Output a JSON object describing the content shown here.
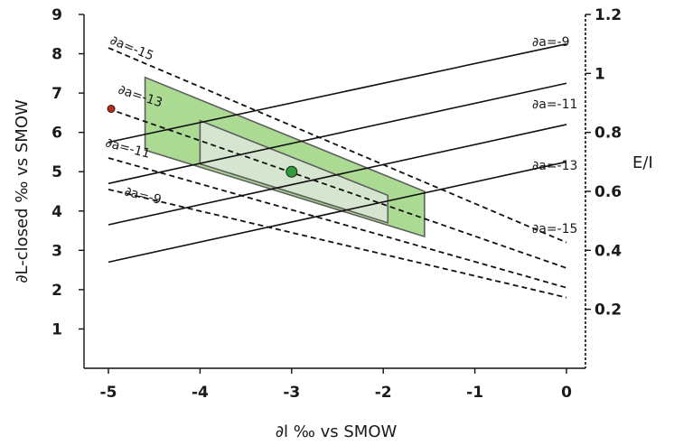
{
  "chart_data": {
    "type": "line",
    "xlabel_main": "∂l ‰ vs SMOW",
    "ylabel_main": "∂L-closed ‰ vs SMOW",
    "y2label": "E/I",
    "xlim": [
      -5.2,
      0.1
    ],
    "ylim": [
      0,
      9
    ],
    "y2lim": [
      0,
      1.2
    ],
    "x_ticks": [
      -5,
      -4,
      -3,
      -2,
      -1,
      0
    ],
    "x_tick_labels": [
      "-5",
      "-4",
      "-3",
      "-2",
      "-1",
      "0"
    ],
    "y_ticks": [
      1,
      2,
      3,
      4,
      5,
      6,
      7,
      8,
      9
    ],
    "y_tick_labels": [
      "1",
      "2",
      "3",
      "4",
      "5",
      "6",
      "7",
      "8",
      "9"
    ],
    "y2_ticks": [
      0.2,
      0.4,
      0.6,
      0.8,
      1.0,
      1.2
    ],
    "y2_tick_labels": [
      "0.2",
      "0.4",
      "0.6",
      "0.8",
      "1",
      "1.2"
    ],
    "solid_lines": [
      {
        "label": "∂a=-9",
        "x": [
          -5,
          0
        ],
        "y": [
          5.75,
          8.25
        ]
      },
      {
        "label": "∂a=-11",
        "x": [
          -5,
          0
        ],
        "y": [
          4.7,
          7.25
        ]
      },
      {
        "label": "∂a=-13",
        "x": [
          -5,
          0
        ],
        "y": [
          3.65,
          6.2
        ]
      },
      {
        "label": "∂a=-15",
        "x": [
          -5,
          0
        ],
        "y": [
          2.7,
          5.25
        ]
      }
    ],
    "dashed_lines": [
      {
        "label": "∂a=-15",
        "x": [
          -5,
          0
        ],
        "y": [
          8.15,
          3.2
        ]
      },
      {
        "label": "∂a=-13",
        "x": [
          -5,
          0
        ],
        "y": [
          6.6,
          2.55
        ]
      },
      {
        "label": "∂a=-11",
        "x": [
          -5,
          0
        ],
        "y": [
          5.35,
          2.05
        ]
      },
      {
        "label": "∂a=-9",
        "x": [
          -5,
          0
        ],
        "y": [
          4.55,
          1.8
        ]
      }
    ],
    "regions": [
      {
        "name": "outer",
        "fill": "#a6d98c",
        "points": [
          [
            -4.6,
            7.4
          ],
          [
            -1.55,
            4.5
          ],
          [
            -1.55,
            3.35
          ],
          [
            -4.6,
            5.55
          ]
        ]
      },
      {
        "name": "inner",
        "fill": "#d8e6d3",
        "points": [
          [
            -4.0,
            6.3
          ],
          [
            -1.95,
            4.4
          ],
          [
            -1.95,
            3.7
          ],
          [
            -4.0,
            5.2
          ]
        ]
      }
    ],
    "points": [
      {
        "x": -3.0,
        "y": 5.0,
        "color": "#2e9c3a",
        "r": 6
      },
      {
        "x": -4.97,
        "y": 6.6,
        "color": "#c0281e",
        "r": 4
      }
    ]
  }
}
